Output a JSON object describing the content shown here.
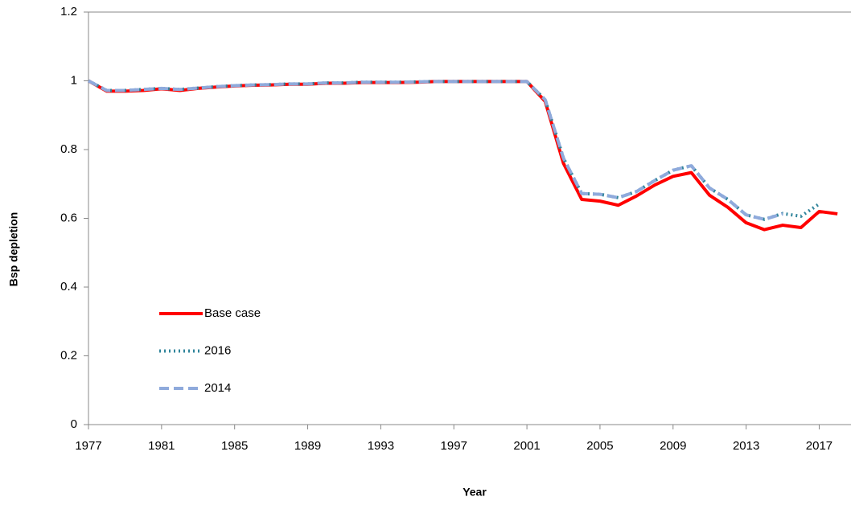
{
  "chart_data": {
    "type": "line",
    "x_label": "Year",
    "y_label": "Bsp depletion",
    "x": [
      1977,
      1978,
      1979,
      1980,
      1981,
      1982,
      1983,
      1984,
      1985,
      1986,
      1987,
      1988,
      1989,
      1990,
      1991,
      1992,
      1993,
      1994,
      1995,
      1996,
      1997,
      1998,
      1999,
      2000,
      2001,
      2002,
      2003,
      2004,
      2005,
      2006,
      2007,
      2008,
      2009,
      2010,
      2011,
      2012,
      2013,
      2014,
      2015,
      2016,
      2017,
      2018
    ],
    "series": [
      {
        "name": "Base case",
        "color": "#ff0000",
        "dash": "solid",
        "values": [
          1.0,
          0.97,
          0.97,
          0.972,
          0.977,
          0.972,
          0.978,
          0.982,
          0.985,
          0.987,
          0.988,
          0.99,
          0.99,
          0.993,
          0.993,
          0.995,
          0.995,
          0.995,
          0.996,
          0.998,
          0.998,
          0.998,
          0.998,
          0.998,
          0.998,
          0.94,
          0.76,
          0.655,
          0.65,
          0.638,
          0.665,
          0.697,
          0.722,
          0.733,
          0.667,
          0.632,
          0.587,
          0.567,
          0.58,
          0.573,
          0.62,
          0.613
        ]
      },
      {
        "name": "2016",
        "color": "#31859c",
        "dash": "dotted",
        "values": [
          1.0,
          0.972,
          0.972,
          0.975,
          0.978,
          0.975,
          0.979,
          0.983,
          0.986,
          0.988,
          0.989,
          0.991,
          0.991,
          0.994,
          0.994,
          0.996,
          0.996,
          0.996,
          0.997,
          0.998,
          0.998,
          0.998,
          0.998,
          0.998,
          0.998,
          0.945,
          0.775,
          0.672,
          0.67,
          0.66,
          0.678,
          0.71,
          0.74,
          0.753,
          0.688,
          0.655,
          0.61,
          0.597,
          0.614,
          0.606,
          0.642,
          null
        ]
      },
      {
        "name": "2014",
        "color": "#8faadc",
        "dash": "dashed",
        "values": [
          1.0,
          0.972,
          0.972,
          0.975,
          0.978,
          0.975,
          0.979,
          0.983,
          0.986,
          0.988,
          0.989,
          0.991,
          0.991,
          0.994,
          0.994,
          0.996,
          0.996,
          0.996,
          0.997,
          0.998,
          0.998,
          0.998,
          0.998,
          0.998,
          0.998,
          0.945,
          0.775,
          0.672,
          0.67,
          0.66,
          0.678,
          0.71,
          0.74,
          0.753,
          0.688,
          0.655,
          0.61,
          0.597,
          0.613,
          null,
          null,
          null
        ]
      }
    ],
    "xlim": [
      1977,
      2018.74
    ],
    "xticks": [
      1977,
      1981,
      1985,
      1989,
      1993,
      1997,
      2001,
      2005,
      2009,
      2013,
      2017
    ],
    "ylim": [
      0,
      1.2
    ],
    "yticks": [
      0,
      0.2,
      0.4,
      0.6,
      0.8,
      1,
      1.2
    ],
    "grid": false,
    "legend": "left"
  }
}
